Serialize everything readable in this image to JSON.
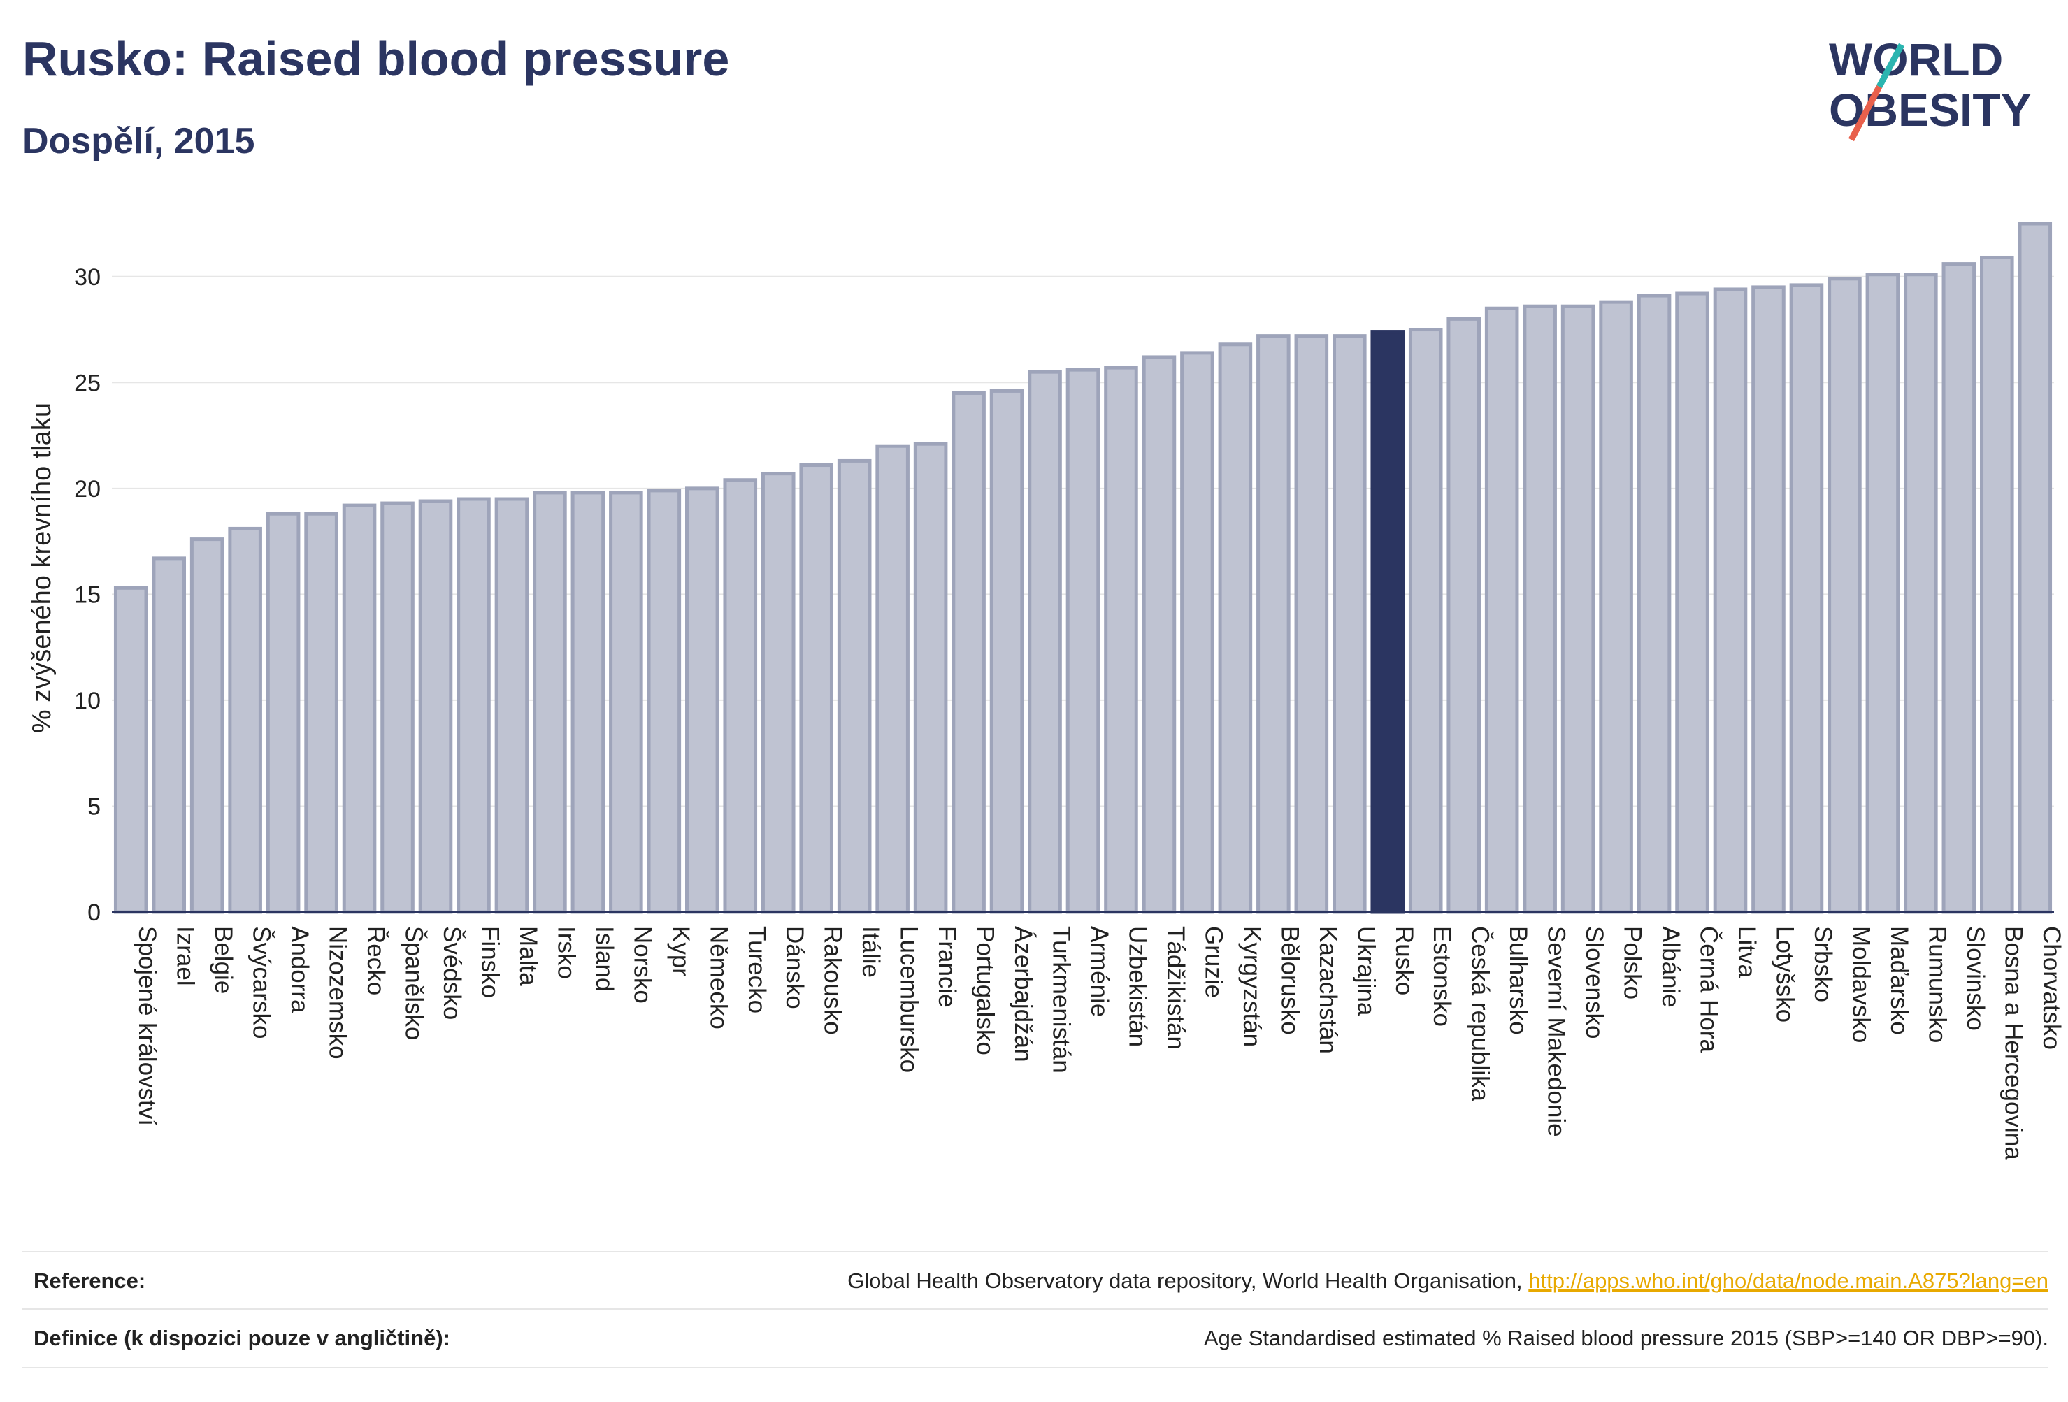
{
  "header": {
    "title": "Rusko: Raised blood pressure",
    "subtitle": "Dospělí, 2015"
  },
  "logo": {
    "line1": "WORLD",
    "line2": "OBESITY",
    "color_text": "#2b3561",
    "color_slash_top": "#2bb5b0",
    "color_slash_bottom": "#e8604c"
  },
  "colors": {
    "bar_fill": "#bfc3d2",
    "bar_stroke": "#9ea4ba",
    "highlight": "#2b3561",
    "grid": "#e6e6e6",
    "axis_text": "#222222"
  },
  "chart_data": {
    "type": "bar",
    "title": "Rusko: Raised blood pressure",
    "subtitle": "Dospělí, 2015",
    "ylabel": "% zvýšeného krevního tlaku",
    "xlabel": "",
    "ylim": [
      0,
      32.5
    ],
    "yticks": [
      0,
      5,
      10,
      15,
      20,
      25,
      30
    ],
    "grid": true,
    "highlight": "Rusko",
    "categories": [
      "Spojené království",
      "Izrael",
      "Belgie",
      "Švýcarsko",
      "Andorra",
      "Nizozemsko",
      "Řecko",
      "Španělsko",
      "Švédsko",
      "Finsko",
      "Malta",
      "Irsko",
      "Island",
      "Norsko",
      "Kypr",
      "Německo",
      "Turecko",
      "Dánsko",
      "Rakousko",
      "Itálie",
      "Lucembursko",
      "Francie",
      "Portugalsko",
      "Ázerbajdžán",
      "Turkmenistán",
      "Arménie",
      "Uzbekistán",
      "Tádžikistán",
      "Gruzie",
      "Kyrgyzstán",
      "Bělorusko",
      "Kazachstán",
      "Ukrajina",
      "Rusko",
      "Estonsko",
      "Česká republika",
      "Bulharsko",
      "Severní Makedonie",
      "Slovensko",
      "Polsko",
      "Albánie",
      "Černá Hora",
      "Litva",
      "Lotyšsko",
      "Srbsko",
      "Moldavsko",
      "Maďarsko",
      "Rumunsko",
      "Slovinsko",
      "Bosna a Hercegovina",
      "Chorvatsko"
    ],
    "values": [
      15.3,
      16.7,
      17.6,
      18.1,
      18.8,
      18.8,
      19.2,
      19.3,
      19.4,
      19.5,
      19.5,
      19.8,
      19.8,
      19.8,
      19.9,
      20.0,
      20.4,
      20.7,
      21.1,
      21.3,
      22.0,
      22.1,
      24.5,
      24.6,
      25.5,
      25.6,
      25.7,
      26.2,
      26.4,
      26.8,
      27.2,
      27.2,
      27.2,
      27.4,
      27.5,
      28.0,
      28.5,
      28.6,
      28.6,
      28.8,
      29.1,
      29.2,
      29.4,
      29.5,
      29.6,
      29.9,
      30.1,
      30.1,
      30.6,
      30.9,
      32.5
    ]
  },
  "reference": {
    "label": "Reference:",
    "text": "Global Health Observatory data repository, World Health Organisation,",
    "link": "http://apps.who.int/gho/data/node.main.A875?lang=en"
  },
  "definition": {
    "label": "Definice (k dispozici pouze v angličtině):",
    "text": "Age Standardised estimated % Raised blood pressure 2015 (SBP>=140 OR DBP>=90)."
  }
}
